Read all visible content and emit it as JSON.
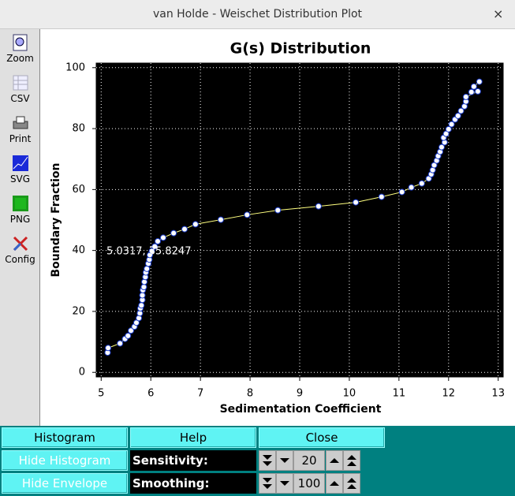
{
  "window": {
    "title": "van Holde - Weischet Distribution Plot",
    "close": "×"
  },
  "toolbar": [
    "Zoom",
    "CSV",
    "Print",
    "SVG",
    "PNG",
    "Config"
  ],
  "chart_data": {
    "type": "line",
    "title": "G(s) Distribution",
    "x_label": "Sedimentation Coefficient",
    "y_label": "Boundary Fraction",
    "x": [
      5.13,
      5.14,
      5.38,
      5.48,
      5.54,
      5.6,
      5.67,
      5.71,
      5.76,
      5.78,
      5.79,
      5.81,
      5.83,
      5.83,
      5.84,
      5.86,
      5.87,
      5.89,
      5.9,
      5.92,
      5.95,
      5.97,
      5.98,
      6.02,
      6.08,
      6.14,
      6.25,
      6.46,
      6.68,
      6.9,
      7.41,
      7.94,
      8.56,
      9.38,
      10.13,
      10.65,
      11.06,
      11.25,
      11.46,
      11.6,
      11.65,
      11.68,
      11.71,
      11.76,
      11.79,
      11.83,
      11.86,
      11.92,
      11.9,
      11.95,
      12.0,
      12.06,
      12.13,
      12.19,
      12.25,
      12.32,
      12.35,
      12.35,
      12.59,
      12.46,
      12.51,
      12.62
    ],
    "values": [
      6.5,
      8,
      9.5,
      11,
      12,
      13.7,
      15,
      16.3,
      17.8,
      19.4,
      21,
      22,
      23.8,
      25.3,
      27,
      28,
      29.7,
      31.3,
      32.8,
      34,
      35.7,
      37,
      38.5,
      39.8,
      41.3,
      43,
      44.2,
      45.7,
      47,
      48.6,
      50.1,
      51.7,
      53.2,
      54.5,
      55.8,
      57.6,
      59.2,
      60.7,
      62,
      63.6,
      65,
      66.4,
      68,
      69.5,
      71,
      72.4,
      73.9,
      75.5,
      77,
      78.3,
      79.8,
      81.4,
      83,
      84.2,
      85.8,
      87.3,
      88.9,
      90.4,
      92.2,
      92,
      93.8,
      95.4
    ],
    "line_color": "#ffff80",
    "marker_color": "#ffffff",
    "marker_edge": "#1a3cc8",
    "background": "#000000",
    "xlim": [
      4.9,
      13.1
    ],
    "ylim": [
      -1.5,
      101.5
    ],
    "xticks": [
      5,
      6,
      7,
      8,
      9,
      10,
      11,
      12,
      13
    ],
    "yticks": [
      0,
      20,
      40,
      60,
      80,
      100
    ],
    "grid": true,
    "annotation": "5.0317, 35.8247"
  },
  "buttons": {
    "histogram": "Histogram",
    "help": "Help",
    "close": "Close",
    "hide_histogram": "Hide Histogram",
    "hide_envelope": "Hide Envelope"
  },
  "controls": [
    {
      "label": "Sensitivity:",
      "value": 20
    },
    {
      "label": "Smoothing:",
      "value": 100
    }
  ]
}
